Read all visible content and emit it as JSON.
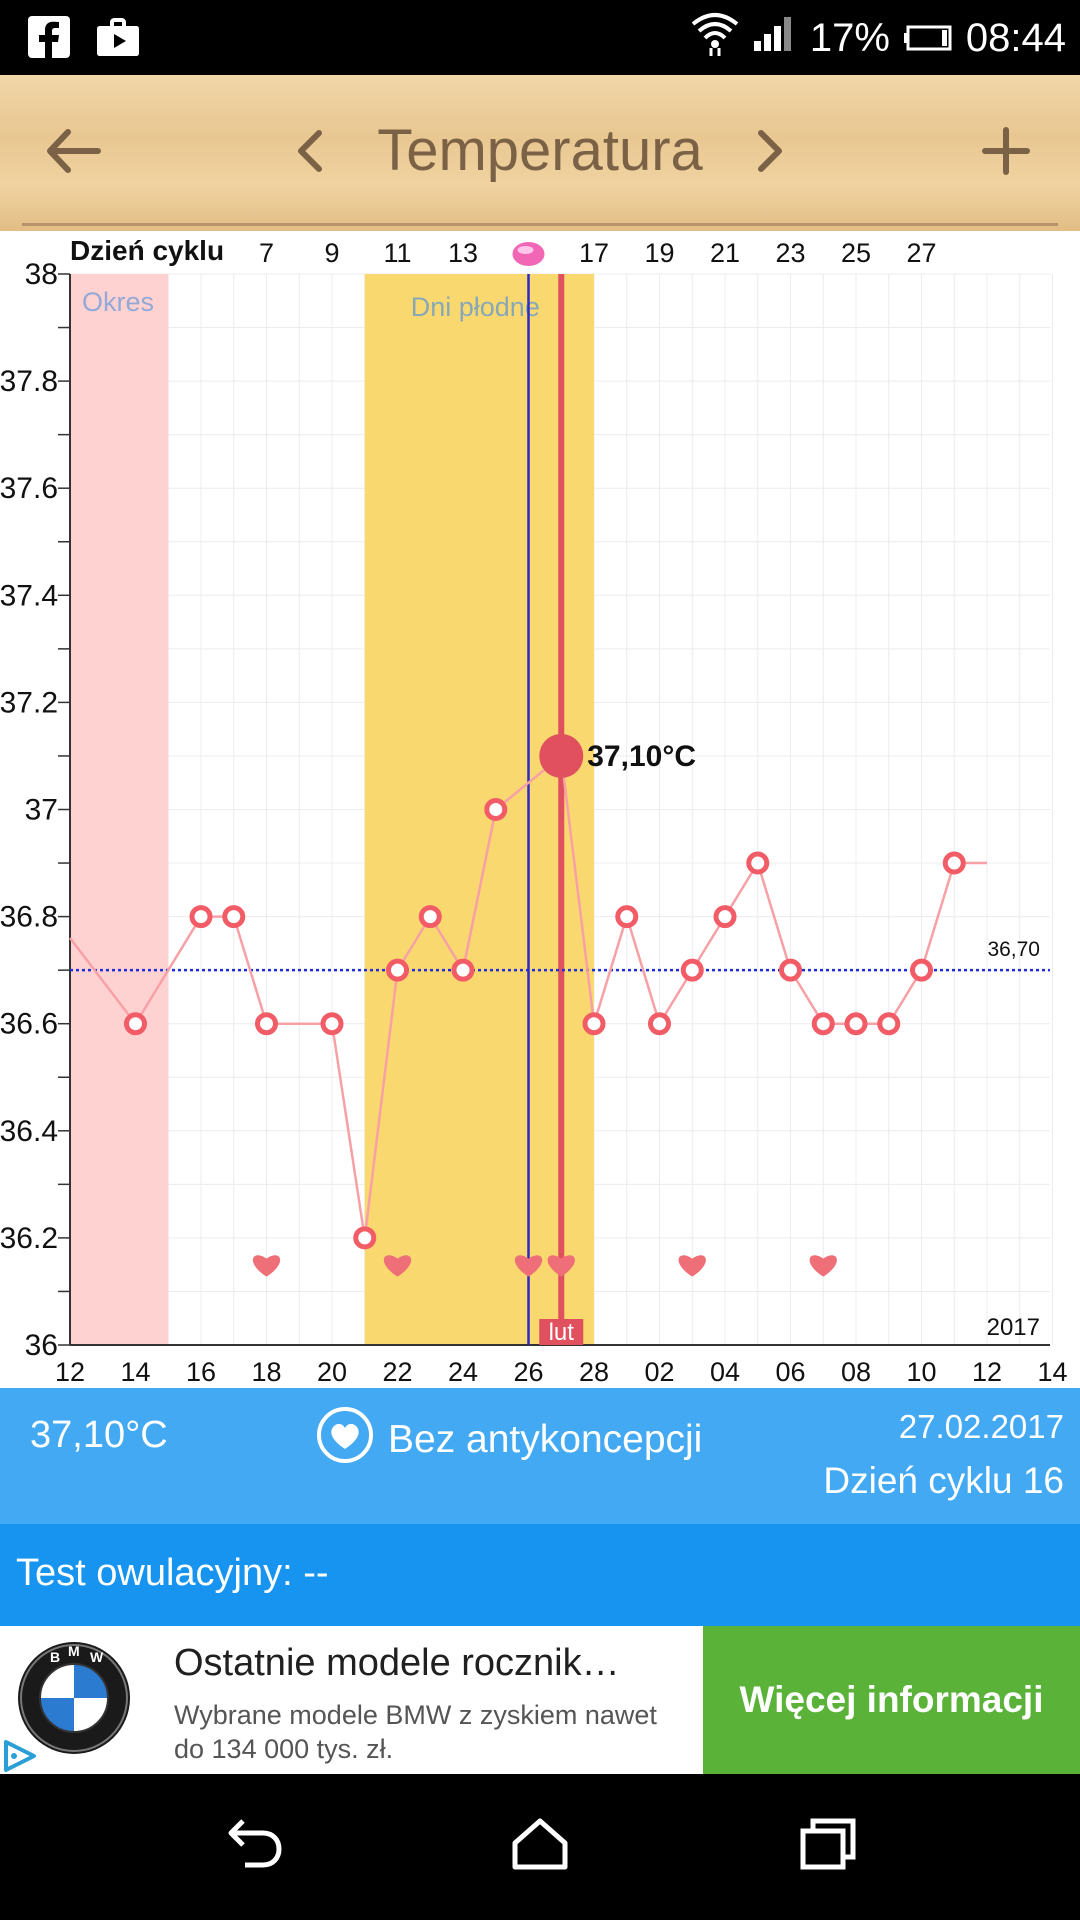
{
  "status_bar": {
    "battery": "17%",
    "time": "08:44",
    "icons": [
      "facebook-icon",
      "shopping-bag-icon",
      "wifi-icon",
      "signal-icon",
      "battery-icon"
    ]
  },
  "app_bar": {
    "title": "Temperatura",
    "icons": [
      "back-arrow-icon",
      "prev-chevron-icon",
      "next-chevron-icon",
      "add-icon"
    ]
  },
  "chart_data": {
    "type": "line",
    "ylim": [
      36,
      38
    ],
    "y_ticks": [
      "36",
      "36.2",
      "36.4",
      "36.6",
      "36.8",
      "37",
      "37.2",
      "37.4",
      "37.6",
      "37.8",
      "38"
    ],
    "top_axis_label": "Dzień cyklu",
    "top_ticks": [
      "7",
      "9",
      "11",
      "13",
      "17",
      "19",
      "21",
      "23",
      "25",
      "27"
    ],
    "bottom_ticks": [
      "12",
      "14",
      "16",
      "18",
      "20",
      "22",
      "24",
      "26",
      "28",
      "02",
      "04",
      "06",
      "08",
      "10",
      "12",
      "14"
    ],
    "year_label": "2017",
    "period_label": "Okres",
    "fertile_label": "Dni płodne",
    "month_label": "lut",
    "coverline_label": "36,70",
    "coverline_value": 36.7,
    "selected_label": "37,10°C",
    "selected_value": 37.1,
    "series": [
      {
        "x": [
          12,
          13,
          14,
          15,
          16,
          17,
          18,
          19,
          20,
          21,
          22,
          23,
          24,
          25,
          26,
          27,
          28,
          29,
          30,
          31,
          32,
          33,
          34,
          35,
          36,
          37,
          38,
          39,
          40
        ],
        "y": [
          36.76,
          36.68,
          36.6,
          36.7,
          36.8,
          36.8,
          36.6,
          36.6,
          36.6,
          36.2,
          36.7,
          36.8,
          36.7,
          37.0,
          37.05,
          37.1,
          36.6,
          36.8,
          36.6,
          36.7,
          36.8,
          36.9,
          36.7,
          36.6,
          36.6,
          36.6,
          36.7,
          36.9,
          36.9
        ],
        "markers": [
          14,
          16,
          17,
          18,
          20,
          21,
          22,
          23,
          24,
          25,
          28,
          29,
          30,
          31,
          32,
          33,
          34,
          35,
          36,
          37,
          38,
          39
        ]
      }
    ],
    "hearts_x": [
      18,
      22,
      26,
      27,
      31,
      35
    ],
    "period_range": [
      12,
      15
    ],
    "fertile_range": [
      21,
      28
    ],
    "cycle_day_line_x": 26,
    "selected_x": 27,
    "colors": {
      "period": "#ffd2d2",
      "fertile": "#f9d96f",
      "line": "#f7a0a6",
      "marker": "#f25c66",
      "selected": "#e0505f",
      "coverline": "#1f2ed9",
      "day_line": "#2b2bc4"
    }
  },
  "info_bar": {
    "temperature": "37,10°C",
    "contraception": "Bez antykoncepcji",
    "date": "27.02.2017",
    "cycle_day": "Dzień cyklu 16",
    "icon": "heart-circle-icon"
  },
  "test_bar": {
    "text": "Test owulacyjny: --"
  },
  "ad": {
    "title": "Ostatnie modele rocznik…",
    "description": "Wybrane modele BMW z zyskiem nawet do 134 000 tys. zł.",
    "button": "Więcej informacji",
    "logo": "bmw-logo",
    "ad_icon": "adchoices-icon"
  },
  "nav_bar": {
    "icons": [
      "back-nav-icon",
      "home-nav-icon",
      "recents-nav-icon"
    ]
  }
}
